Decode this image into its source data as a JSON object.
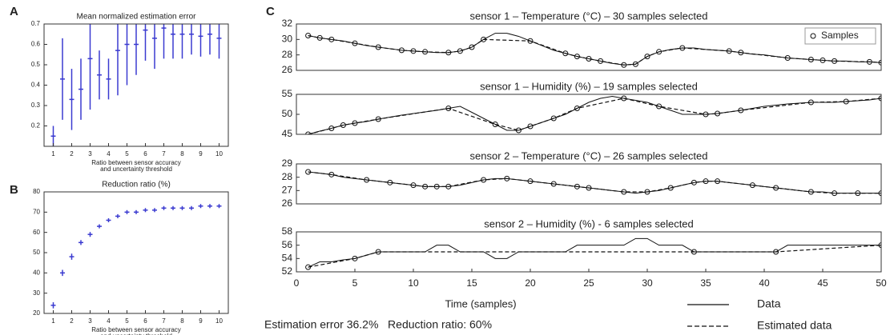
{
  "panels": [
    "A",
    "B",
    "C"
  ],
  "chart_data": [
    {
      "type": "errorbar",
      "title": "Mean normalized estimation error",
      "color": "#3a3ad0",
      "x": [
        1,
        1.5,
        2,
        2.5,
        3,
        3.5,
        4,
        4.5,
        5,
        5.5,
        6,
        6.5,
        7,
        7.5,
        8,
        8.5,
        9,
        9.5,
        10
      ],
      "values": [
        0.15,
        0.43,
        0.33,
        0.38,
        0.53,
        0.45,
        0.43,
        0.57,
        0.6,
        0.6,
        0.67,
        0.63,
        0.68,
        0.65,
        0.65,
        0.65,
        0.64,
        0.65,
        0.63
      ],
      "errors": [
        0.05,
        0.2,
        0.15,
        0.15,
        0.25,
        0.12,
        0.1,
        0.22,
        0.2,
        0.15,
        0.15,
        0.15,
        0.15,
        0.12,
        0.12,
        0.1,
        0.1,
        0.1,
        0.1
      ],
      "xlim": [
        0.5,
        10.5
      ],
      "xticks": [
        1,
        2,
        3,
        4,
        5,
        6,
        7,
        8,
        9,
        10
      ],
      "ylim": [
        0.1,
        0.7
      ],
      "yticks": [
        0.2,
        0.3,
        0.4,
        0.5,
        0.6,
        0.7
      ],
      "xlabel": [
        "Ratio between sensor accuracy",
        "and uncertainty threshold"
      ]
    },
    {
      "type": "errorbar",
      "title": "Reduction ratio (%)",
      "color": "#3a3ad0",
      "x": [
        1,
        1.5,
        2,
        2.5,
        3,
        3.5,
        4,
        4.5,
        5,
        5.5,
        6,
        6.5,
        7,
        7.5,
        8,
        8.5,
        9,
        9.5,
        10
      ],
      "values": [
        24,
        40,
        48,
        55,
        59,
        63,
        66,
        68,
        70,
        70,
        71,
        71,
        72,
        72,
        72,
        72,
        73,
        73,
        73
      ],
      "errors": [
        1.5,
        1.5,
        1.5,
        1.2,
        1.2,
        1,
        1,
        1,
        1,
        1,
        1,
        1,
        1,
        1,
        1,
        1,
        1,
        1,
        1
      ],
      "xlim": [
        0.5,
        10.5
      ],
      "xticks": [
        1,
        2,
        3,
        4,
        5,
        6,
        7,
        8,
        9,
        10
      ],
      "ylim": [
        20,
        80
      ],
      "yticks": [
        20,
        30,
        40,
        50,
        60,
        70,
        80
      ],
      "xlabel": [
        "Ratio between sensor accuracy",
        "and uncertainty threshold"
      ]
    },
    {
      "type": "line",
      "title": "sensor 1 – Temperature (°C) – 30 samples selected",
      "x": [
        1,
        2,
        3,
        4,
        5,
        6,
        7,
        8,
        9,
        10,
        11,
        12,
        13,
        14,
        15,
        16,
        17,
        18,
        19,
        20,
        21,
        22,
        23,
        24,
        25,
        26,
        27,
        28,
        29,
        30,
        31,
        32,
        33,
        34,
        35,
        36,
        37,
        38,
        39,
        40,
        41,
        42,
        43,
        44,
        45,
        46,
        47,
        48,
        49,
        50
      ],
      "values": [
        30.5,
        30.2,
        30.0,
        29.8,
        29.5,
        29.2,
        29.0,
        28.8,
        28.6,
        28.5,
        28.4,
        28.3,
        28.3,
        28.5,
        29.0,
        30.0,
        30.8,
        30.8,
        30.4,
        29.8,
        29.2,
        28.6,
        28.2,
        27.8,
        27.5,
        27.2,
        26.9,
        26.7,
        26.8,
        27.8,
        28.4,
        28.7,
        28.9,
        28.9,
        28.7,
        28.6,
        28.5,
        28.3,
        28.1,
        28.0,
        27.8,
        27.6,
        27.5,
        27.4,
        27.3,
        27.2,
        27.2,
        27.1,
        27.1,
        27.0
      ],
      "samples": {
        "name": "Samples",
        "x": [
          1,
          2,
          3,
          5,
          7,
          9,
          10,
          11,
          13,
          14,
          15,
          16,
          20,
          23,
          24,
          25,
          26,
          28,
          29,
          30,
          31,
          33,
          37,
          38,
          42,
          44,
          45,
          46,
          49,
          50
        ],
        "values": [
          30.5,
          30.2,
          30.0,
          29.5,
          29.0,
          28.6,
          28.5,
          28.4,
          28.3,
          28.5,
          29.0,
          30.0,
          29.8,
          28.2,
          27.8,
          27.5,
          27.2,
          26.7,
          26.8,
          27.8,
          28.4,
          28.9,
          28.5,
          28.3,
          27.6,
          27.4,
          27.3,
          27.2,
          27.1,
          27.0
        ]
      },
      "legend": "upper right",
      "xlim": [
        0,
        50
      ],
      "ylim": [
        26,
        32
      ],
      "yticks": [
        26,
        28,
        30,
        32
      ]
    },
    {
      "type": "line",
      "title": "sensor 1 – Humidity (%) – 19 samples selected",
      "x": [
        1,
        2,
        3,
        4,
        5,
        6,
        7,
        8,
        9,
        10,
        11,
        12,
        13,
        14,
        15,
        16,
        17,
        18,
        19,
        20,
        21,
        22,
        23,
        24,
        25,
        26,
        27,
        28,
        29,
        30,
        31,
        32,
        33,
        34,
        35,
        36,
        37,
        38,
        39,
        40,
        41,
        42,
        43,
        44,
        45,
        46,
        47,
        48,
        49,
        50
      ],
      "values": [
        45,
        45.8,
        46.5,
        47.3,
        47.8,
        48.2,
        48.8,
        49.3,
        49.8,
        50.2,
        50.6,
        51.0,
        51.5,
        52.0,
        50.5,
        49.0,
        47.5,
        46.0,
        46.0,
        47.0,
        48.0,
        49.0,
        50.0,
        51.5,
        53.0,
        54.0,
        54.5,
        54.0,
        53.5,
        53.0,
        52.0,
        51.0,
        50.0,
        50.0,
        50.0,
        50.2,
        50.6,
        51.0,
        51.5,
        52.0,
        52.3,
        52.6,
        52.8,
        53.0,
        53.0,
        53.0,
        53.2,
        53.4,
        53.6,
        54.0
      ],
      "samples": {
        "x": [
          1,
          3,
          4,
          5,
          7,
          13,
          17,
          19,
          20,
          22,
          24,
          28,
          31,
          35,
          36,
          38,
          44,
          47,
          50
        ],
        "values": [
          45,
          46.5,
          47.3,
          47.8,
          48.8,
          51.5,
          47.5,
          46.0,
          47.0,
          49.0,
          51.5,
          54.0,
          52.0,
          50.0,
          50.2,
          51.0,
          53.0,
          53.2,
          54.0
        ]
      },
      "xlim": [
        0,
        50
      ],
      "ylim": [
        45,
        55
      ],
      "yticks": [
        45,
        50,
        55
      ]
    },
    {
      "type": "line",
      "title": "sensor 2 – Temperature (°C) – 26 samples selected",
      "x": [
        1,
        2,
        3,
        4,
        5,
        6,
        7,
        8,
        9,
        10,
        11,
        12,
        13,
        14,
        15,
        16,
        17,
        18,
        19,
        20,
        21,
        22,
        23,
        24,
        25,
        26,
        27,
        28,
        29,
        30,
        31,
        32,
        33,
        34,
        35,
        36,
        37,
        38,
        39,
        40,
        41,
        42,
        43,
        44,
        45,
        46,
        47,
        48,
        49,
        50
      ],
      "values": [
        28.4,
        28.3,
        28.2,
        28.0,
        27.9,
        27.8,
        27.7,
        27.6,
        27.5,
        27.4,
        27.3,
        27.3,
        27.3,
        27.4,
        27.6,
        27.8,
        27.9,
        27.9,
        27.8,
        27.7,
        27.6,
        27.5,
        27.4,
        27.3,
        27.2,
        27.1,
        27.0,
        26.9,
        26.8,
        26.9,
        27.0,
        27.2,
        27.4,
        27.6,
        27.7,
        27.7,
        27.6,
        27.5,
        27.4,
        27.3,
        27.2,
        27.1,
        27.0,
        26.9,
        26.9,
        26.8,
        26.8,
        26.8,
        26.8,
        26.8
      ],
      "samples": {
        "x": [
          1,
          3,
          6,
          8,
          10,
          11,
          12,
          13,
          16,
          18,
          20,
          22,
          24,
          25,
          28,
          30,
          32,
          34,
          35,
          36,
          39,
          41,
          44,
          46,
          48,
          50
        ],
        "values": [
          28.4,
          28.2,
          27.8,
          27.6,
          27.4,
          27.3,
          27.3,
          27.3,
          27.8,
          27.9,
          27.7,
          27.5,
          27.3,
          27.2,
          26.9,
          26.9,
          27.2,
          27.6,
          27.7,
          27.7,
          27.4,
          27.2,
          26.9,
          26.8,
          26.8,
          26.8
        ]
      },
      "xlim": [
        0,
        50
      ],
      "ylim": [
        26,
        29
      ],
      "yticks": [
        26,
        27,
        28,
        29
      ]
    },
    {
      "type": "line",
      "title": "sensor 2 – Humidity (%) - 6 samples selected",
      "x": [
        1,
        2,
        3,
        4,
        5,
        6,
        7,
        8,
        9,
        10,
        11,
        12,
        13,
        14,
        15,
        16,
        17,
        18,
        19,
        20,
        21,
        22,
        23,
        24,
        25,
        26,
        27,
        28,
        29,
        30,
        31,
        32,
        33,
        34,
        35,
        36,
        37,
        38,
        39,
        40,
        41,
        42,
        43,
        44,
        45,
        46,
        47,
        48,
        49,
        50
      ],
      "values": [
        52.7,
        53.5,
        53.5,
        53.8,
        54,
        54.5,
        55,
        55,
        55,
        55,
        55,
        56,
        56,
        55,
        55,
        55,
        54,
        54,
        55,
        55,
        55,
        55,
        55,
        56,
        56,
        56,
        56,
        56,
        57,
        57,
        56,
        56,
        56,
        55,
        55,
        55,
        55,
        55,
        55,
        55,
        55,
        56,
        56,
        56,
        56,
        56,
        56,
        56,
        56,
        56
      ],
      "samples": {
        "x": [
          1,
          5,
          7,
          34,
          41,
          50
        ],
        "values": [
          52.7,
          54,
          55,
          55,
          55,
          56
        ]
      },
      "xlim": [
        0,
        50
      ],
      "xticks": [
        0,
        5,
        10,
        15,
        20,
        25,
        30,
        35,
        40,
        45,
        50
      ],
      "ylim": [
        52,
        58
      ],
      "yticks": [
        52,
        54,
        56,
        58
      ],
      "xlabel": [
        "Time (samples)"
      ]
    }
  ],
  "legend": [
    {
      "name": "Data",
      "style": "solid"
    },
    {
      "name": "Estimated data",
      "style": "dashed"
    }
  ],
  "caption": "Estimation error 36.2%   Reduction ratio: 60%"
}
